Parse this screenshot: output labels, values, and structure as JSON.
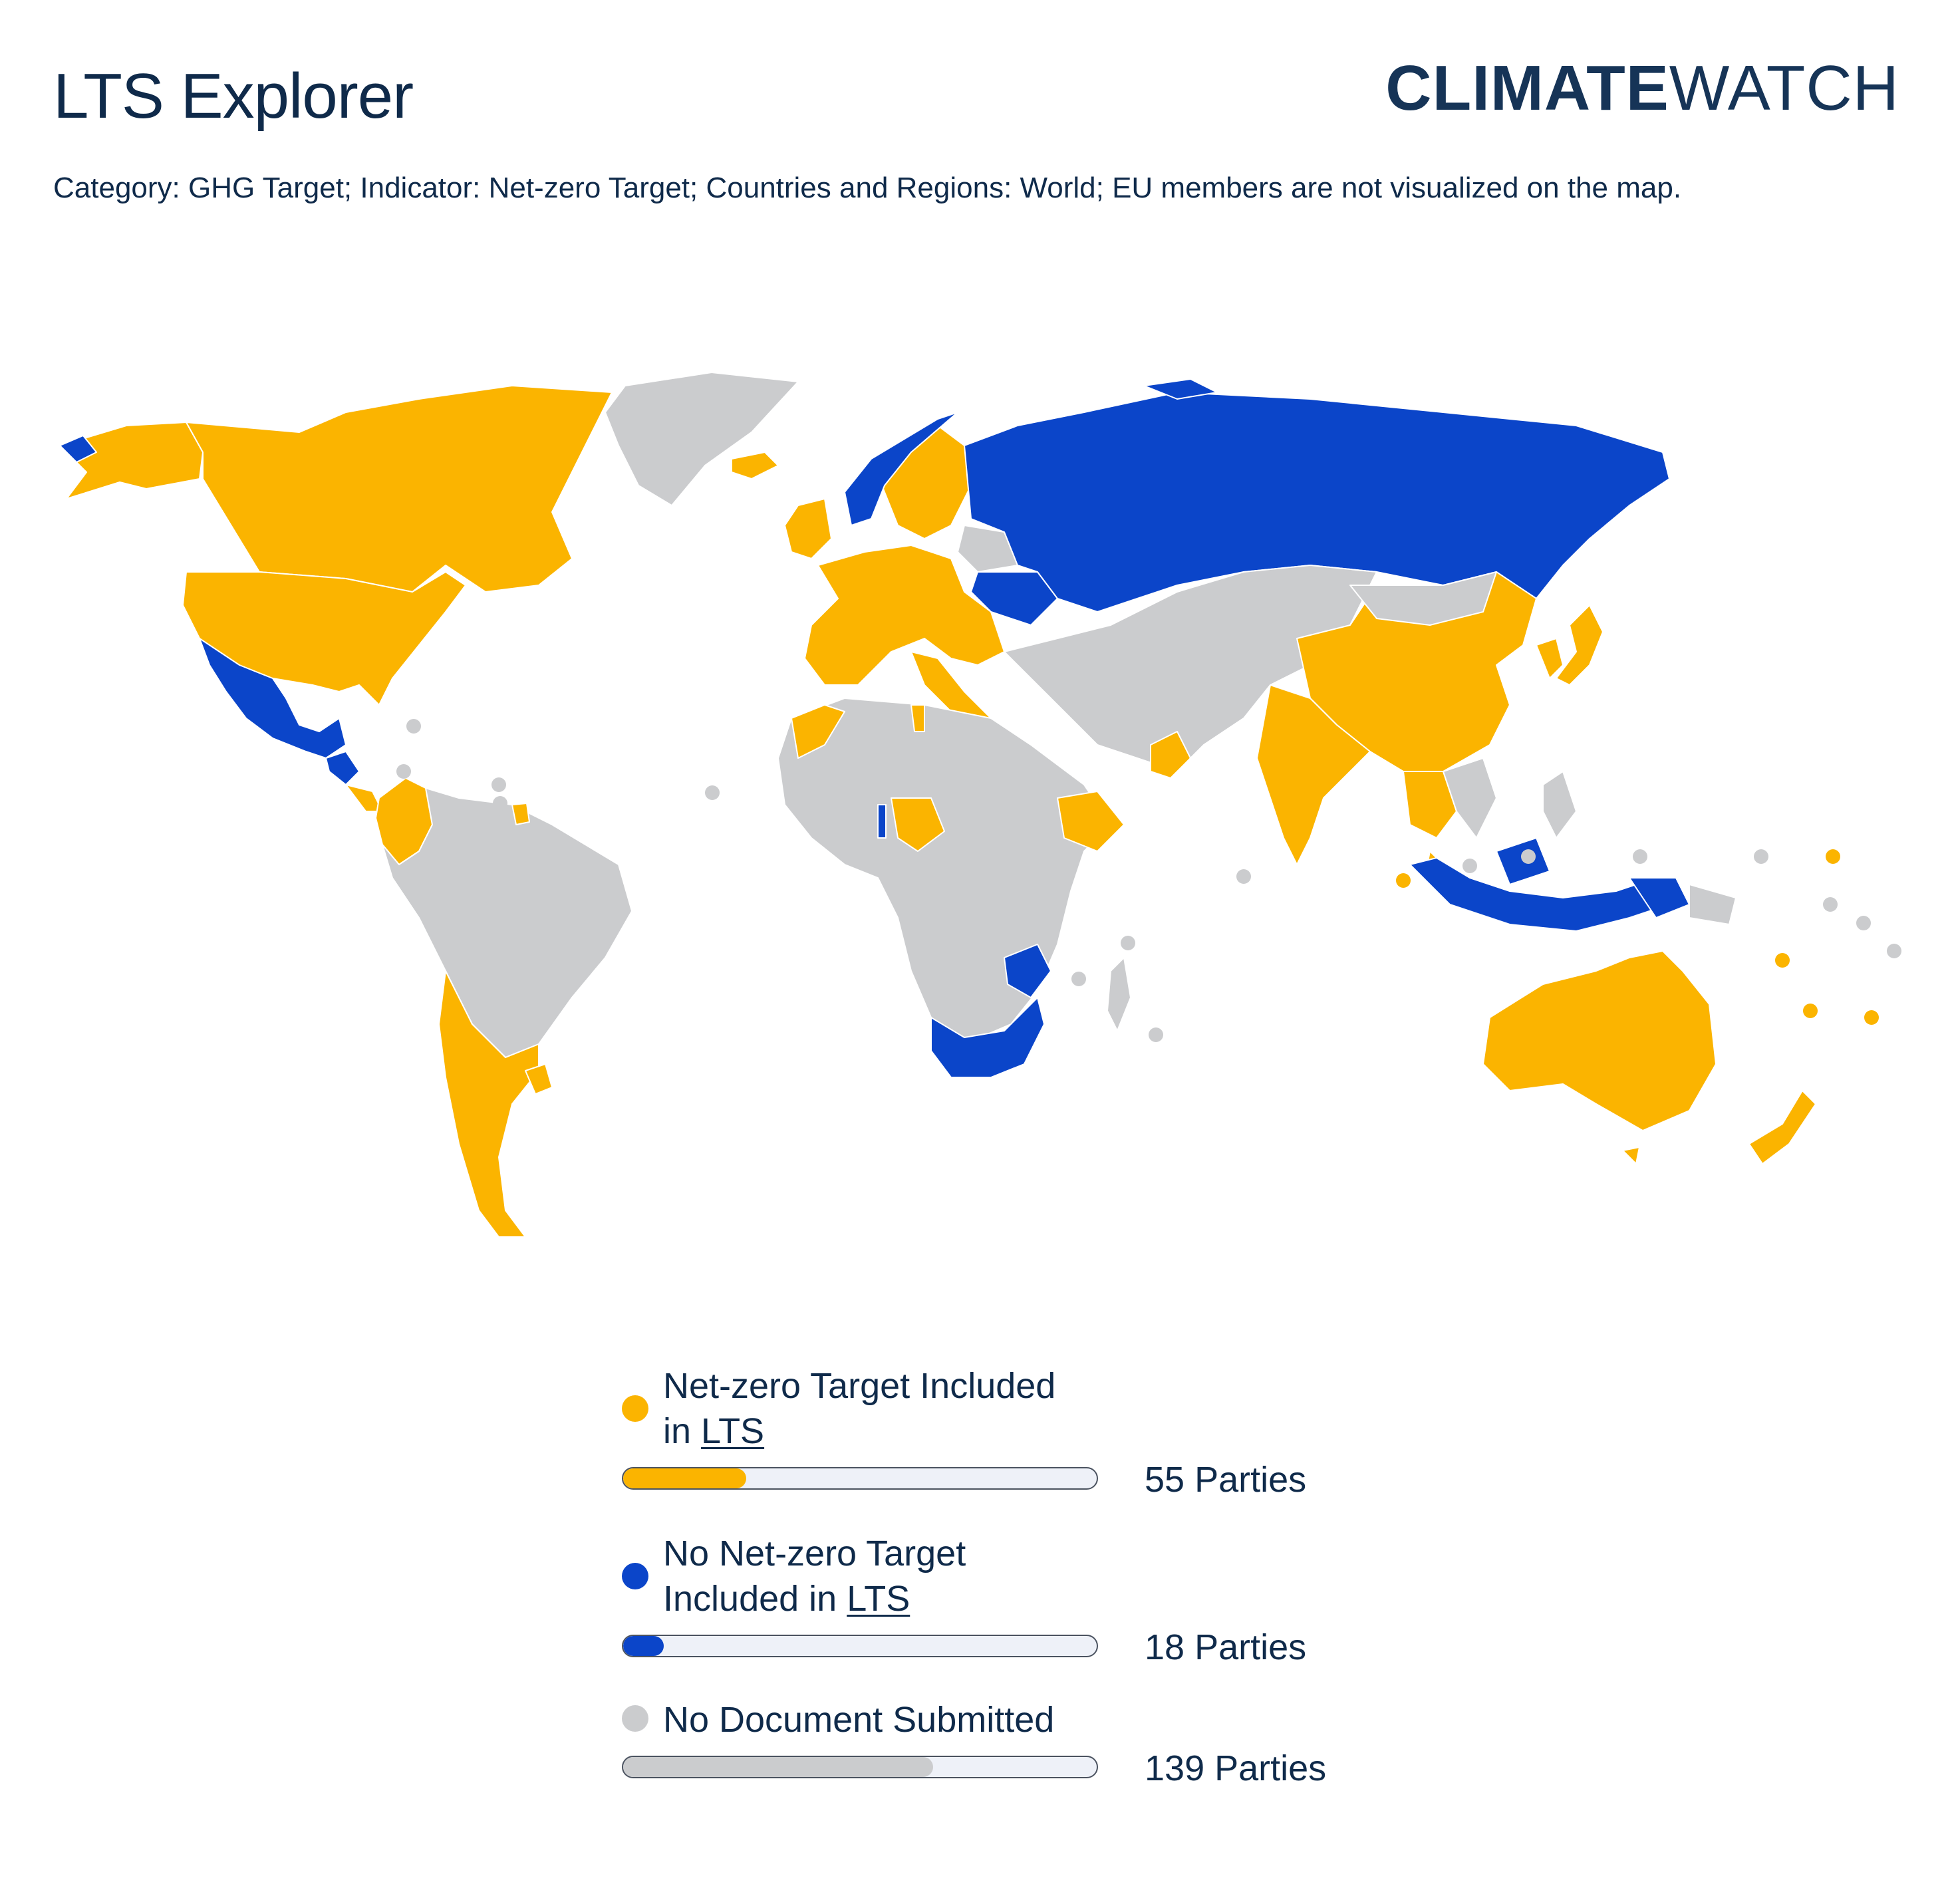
{
  "header": {
    "title": "LTS Explorer",
    "logo_strong": "CLIMATE",
    "logo_light": "WATCH",
    "subtitle": "Category: GHG Target; Indicator: Net-zero Target; Countries and Regions: World; EU members are not visualized on the map."
  },
  "colors": {
    "net_zero": "#fbb400",
    "no_net_zero": "#0b45c9",
    "no_document": "#cbccce",
    "text": "#0f2a4a",
    "bar_track": "#eef1f8"
  },
  "legend": [
    {
      "id": "net-zero",
      "label_prefix": "Net-zero Target Included in ",
      "link": "LTS",
      "count": 55,
      "count_text": "55 Parties",
      "share": 0.26,
      "color": "#fbb400"
    },
    {
      "id": "no-net-zero",
      "label_prefix": "No Net-zero Target Included in ",
      "link": "LTS",
      "count": 18,
      "count_text": "18 Parties",
      "share": 0.085,
      "color": "#0b45c9"
    },
    {
      "id": "no-document",
      "label_prefix": "No Document Submitted",
      "link": "",
      "count": 139,
      "count_text": "139 Parties",
      "share": 0.655,
      "color": "#cbccce"
    }
  ]
}
